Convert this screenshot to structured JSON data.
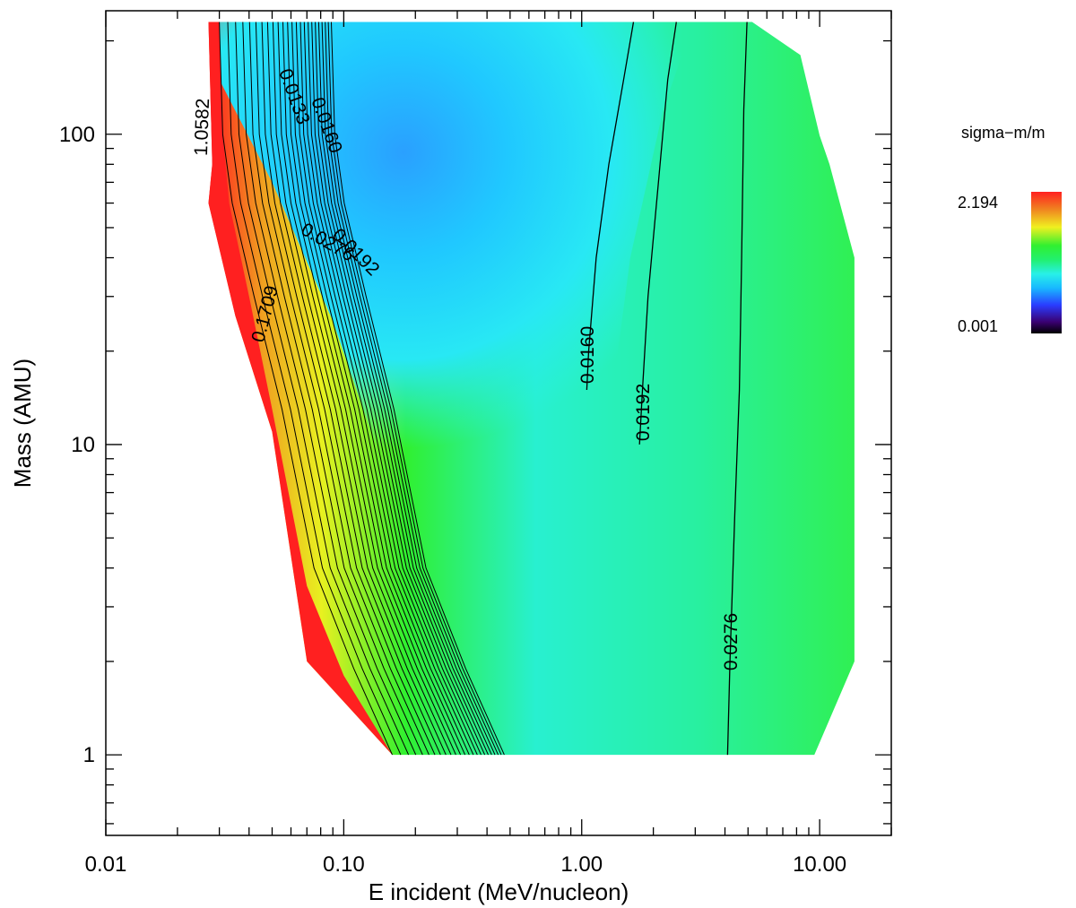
{
  "chart_data": {
    "type": "heatmap",
    "subtype": "filled-contour",
    "xlabel": "E incident (MeV/nucleon)",
    "ylabel": "Mass (AMU)",
    "x_scale": "log",
    "y_scale": "log",
    "xlim": [
      0.01,
      20
    ],
    "ylim": [
      0.55,
      250
    ],
    "x_ticks": [
      {
        "value": 0.01,
        "label": "0.01"
      },
      {
        "value": 0.1,
        "label": "0.10"
      },
      {
        "value": 1,
        "label": "1.00"
      },
      {
        "value": 10,
        "label": "10.00"
      }
    ],
    "y_ticks": [
      {
        "value": 1,
        "label": "1"
      },
      {
        "value": 10,
        "label": "10"
      },
      {
        "value": 100,
        "label": "100"
      }
    ],
    "colorbar": {
      "title": "sigma−m/m",
      "max_label": "2.194",
      "min_label": "0.001",
      "colormap": "rainbow",
      "colors": [
        "#000000",
        "#3a0070",
        "#2a3cff",
        "#18b8ff",
        "#28f0e8",
        "#22f070",
        "#30f030",
        "#f0f020",
        "#f08020",
        "#ff2020"
      ]
    },
    "domain_boundary": [
      [
        0.027,
        230
      ],
      [
        0.028,
        80
      ],
      [
        0.027,
        60
      ],
      [
        0.035,
        26
      ],
      [
        0.05,
        11
      ],
      [
        0.07,
        2
      ],
      [
        0.16,
        1
      ],
      [
        9.5,
        1
      ],
      [
        14,
        2
      ],
      [
        14,
        40
      ],
      [
        11,
        80
      ],
      [
        10,
        99
      ],
      [
        8.3,
        180
      ],
      [
        5.2,
        230
      ],
      [
        2.95,
        230
      ]
    ],
    "contours": [
      {
        "label": "0.0160",
        "points": [
          [
            1.05,
            15
          ],
          [
            1.07,
            20
          ],
          [
            1.15,
            40
          ],
          [
            1.3,
            80
          ],
          [
            1.5,
            150
          ],
          [
            1.65,
            230
          ]
        ]
      },
      {
        "label": "0.0192",
        "points": [
          [
            1.75,
            10
          ],
          [
            1.8,
            15
          ],
          [
            1.9,
            30
          ],
          [
            2.1,
            70
          ],
          [
            2.3,
            150
          ],
          [
            2.5,
            230
          ]
        ]
      },
      {
        "label": "0.0276",
        "points": [
          [
            4.1,
            1
          ],
          [
            4.2,
            2
          ],
          [
            4.4,
            6
          ],
          [
            4.6,
            15
          ],
          [
            4.7,
            40
          ],
          [
            4.8,
            120
          ],
          [
            4.95,
            230
          ]
        ]
      }
    ],
    "annotations": [
      "1.0582",
      "0.0133",
      "0.0160",
      "0.0192",
      "0.0276",
      "0.1709"
    ]
  }
}
